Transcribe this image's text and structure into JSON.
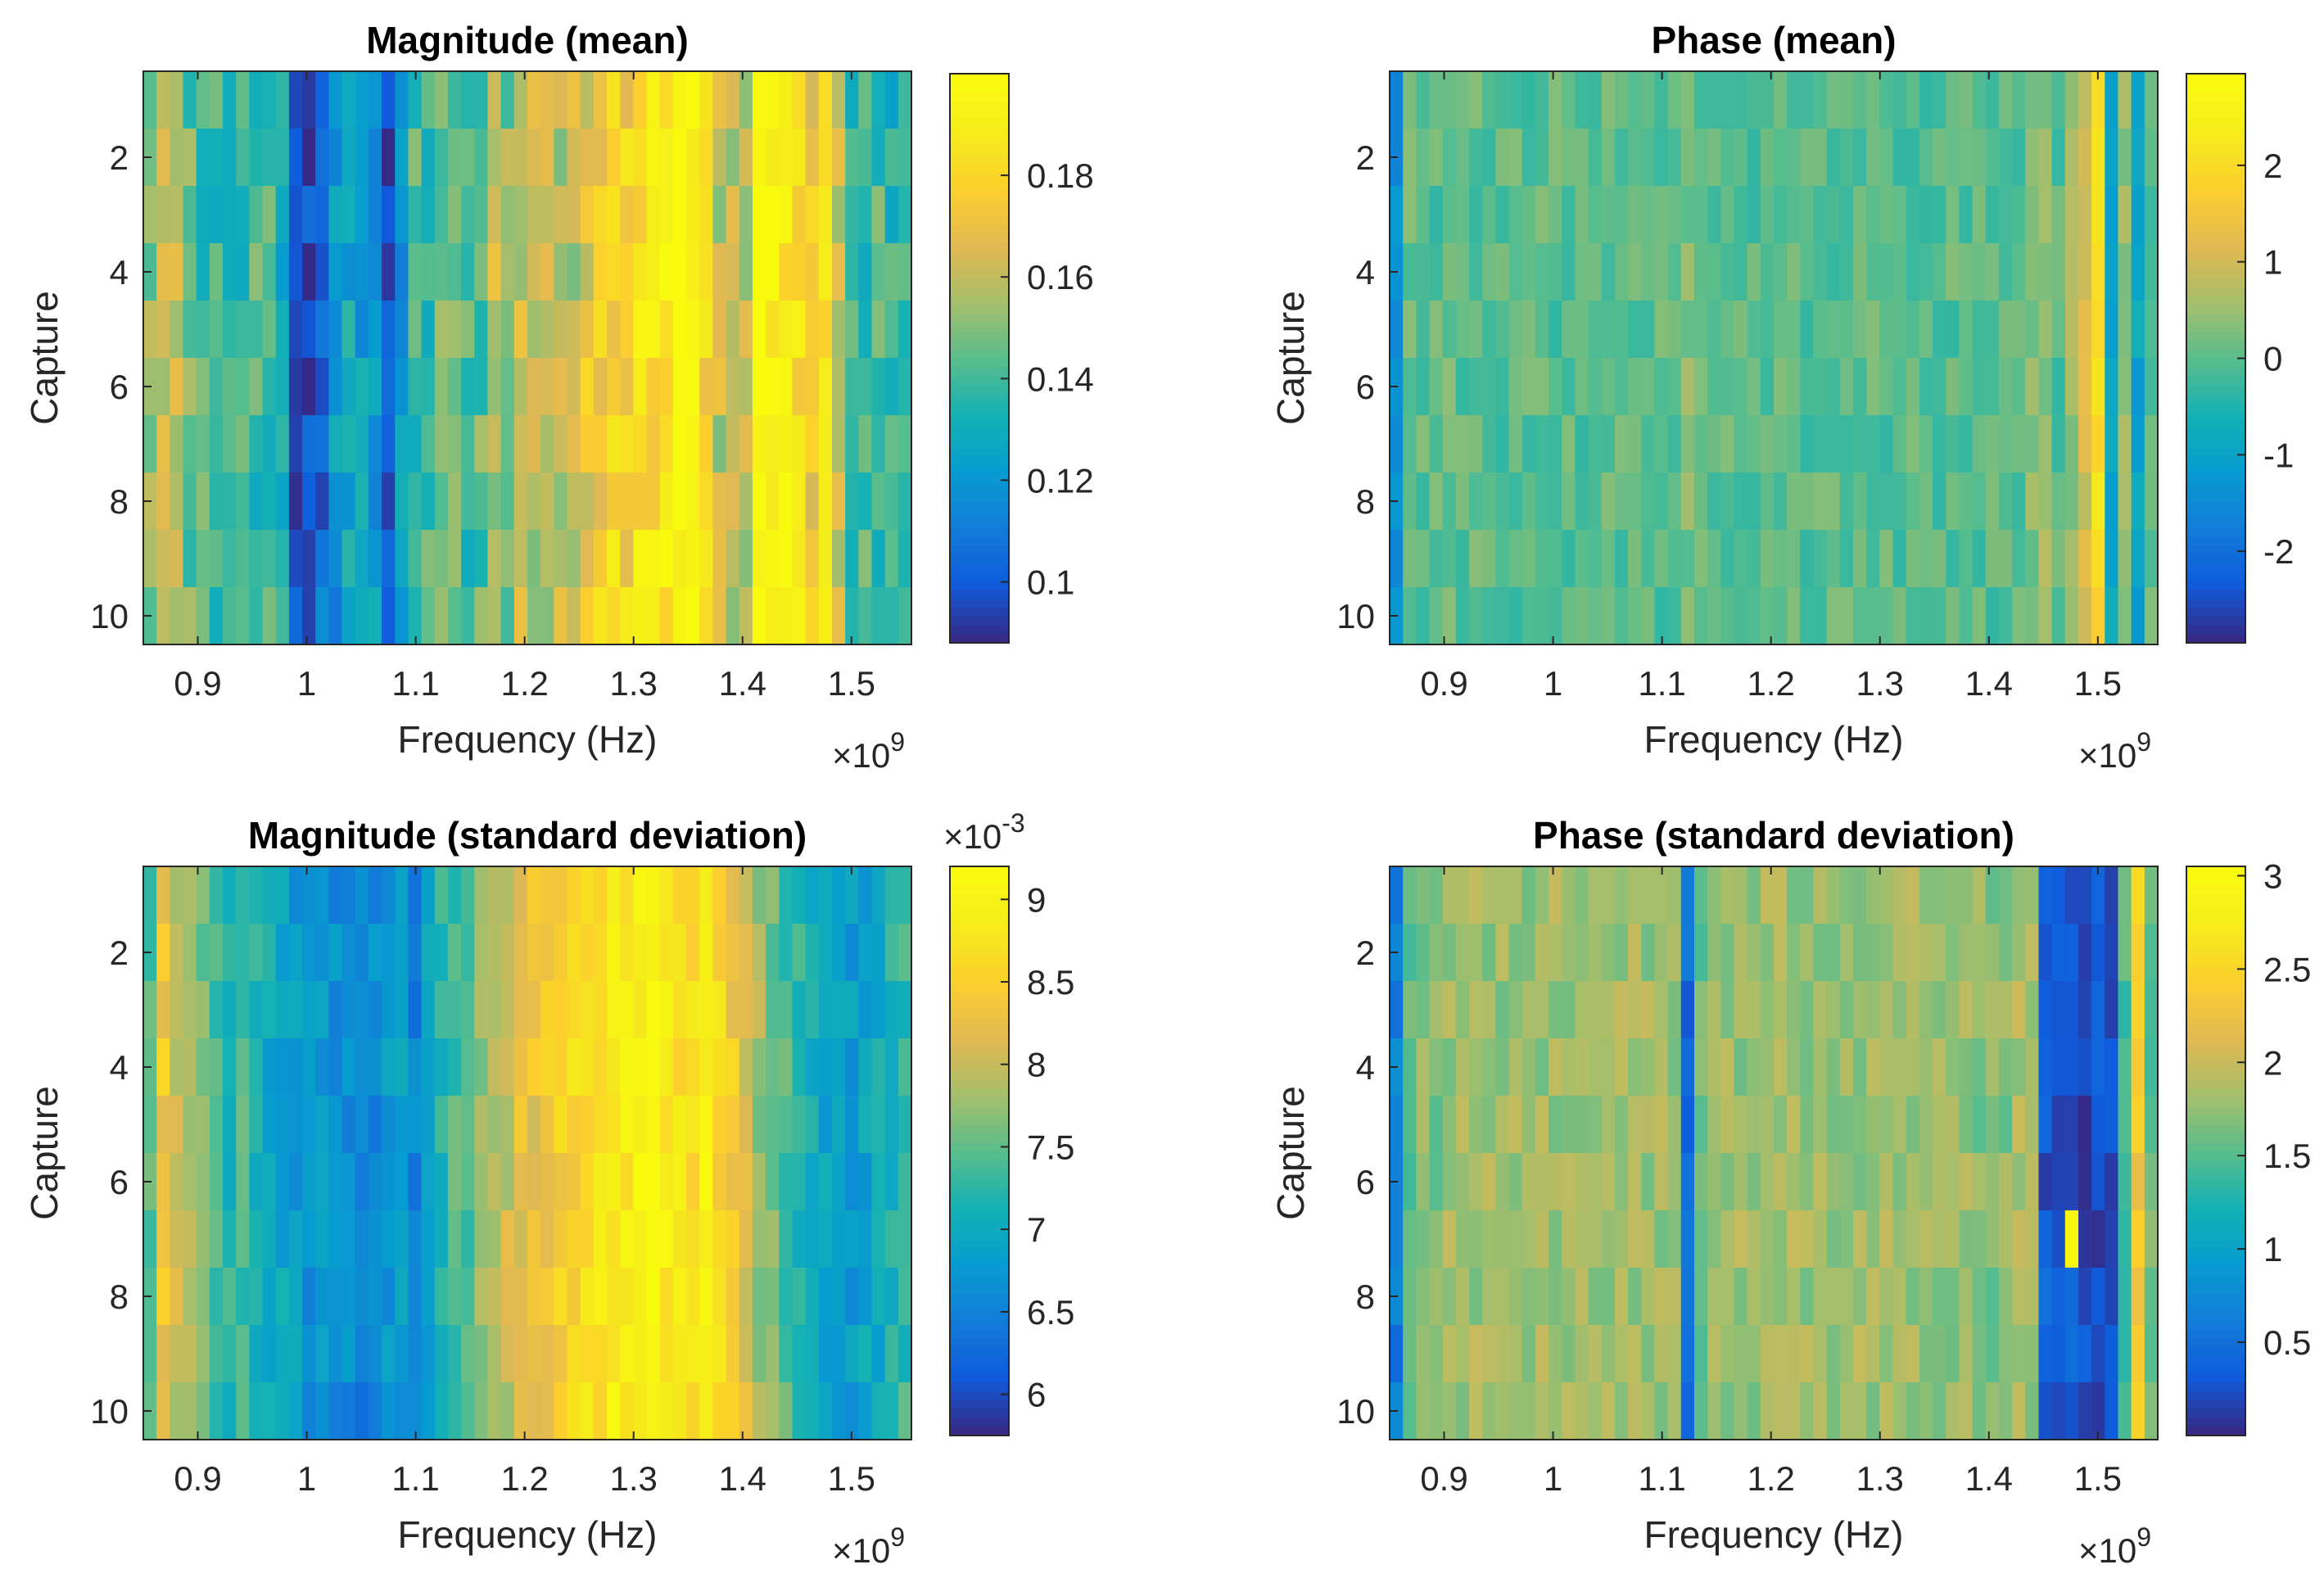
{
  "figure": {
    "xlabel": "Frequency (Hz)",
    "ylabel": "Capture",
    "xexp_base": "×10",
    "xexp_pow": "9"
  },
  "chart_data": [
    {
      "type": "heatmap",
      "title": "Magnitude (mean)",
      "xlabel": "Frequency (Hz)",
      "ylabel": "Capture",
      "x_range": [
        850000000.0,
        1555000000.0
      ],
      "x_ticks": [
        "0.9",
        "1",
        "1.1",
        "1.2",
        "1.3",
        "1.4",
        "1.5"
      ],
      "y_ticks": [
        "2",
        "4",
        "6",
        "8",
        "10"
      ],
      "captures": 10,
      "colorbar": {
        "ticks": [
          "0.1",
          "0.12",
          "0.14",
          "0.16",
          "0.18"
        ],
        "min": 0.088,
        "max": 0.2,
        "exponent_label": ""
      },
      "column_profile": [
        0.15,
        0.165,
        0.16,
        0.145,
        0.14,
        0.14,
        0.14,
        0.14,
        0.14,
        0.14,
        0.13,
        0.1,
        0.095,
        0.105,
        0.12,
        0.125,
        0.125,
        0.12,
        0.095,
        0.12,
        0.14,
        0.14,
        0.145,
        0.15,
        0.14,
        0.145,
        0.16,
        0.15,
        0.16,
        0.16,
        0.16,
        0.16,
        0.16,
        0.17,
        0.175,
        0.18,
        0.178,
        0.185,
        0.185,
        0.19,
        0.2,
        0.195,
        0.18,
        0.16,
        0.16,
        0.16,
        0.2,
        0.195,
        0.19,
        0.185,
        0.17,
        0.18,
        0.16,
        0.14,
        0.14,
        0.14,
        0.135,
        0.135
      ],
      "noise": 0.012,
      "seed": 11
    },
    {
      "type": "heatmap",
      "title": "Phase (mean)",
      "xlabel": "Frequency (Hz)",
      "ylabel": "Capture",
      "x_range": [
        850000000.0,
        1555000000.0
      ],
      "x_ticks": [
        "0.9",
        "1",
        "1.1",
        "1.2",
        "1.3",
        "1.4",
        "1.5"
      ],
      "y_ticks": [
        "2",
        "4",
        "6",
        "8",
        "10"
      ],
      "captures": 10,
      "colorbar": {
        "ticks": [
          "-2",
          "-1",
          "0",
          "1",
          "2"
        ],
        "min": -2.95,
        "max": 2.95,
        "exponent_label": ""
      },
      "column_profile": [
        -1.5,
        0.1,
        0,
        0,
        0.2,
        0,
        0,
        0,
        0,
        0,
        0,
        0,
        0,
        0,
        0,
        0,
        0.1,
        0,
        0,
        0,
        0,
        0,
        0.3,
        0,
        0,
        0,
        0,
        0,
        0,
        0,
        0,
        0,
        0,
        0,
        0,
        0,
        0,
        0,
        0,
        0,
        0,
        0,
        0,
        0,
        0,
        0,
        0,
        0,
        0.3,
        0.5,
        0,
        0.5,
        1,
        2,
        -1,
        0.5,
        -1,
        0
      ],
      "noise": 0.35,
      "seed": 27
    },
    {
      "type": "heatmap",
      "title": "Magnitude (standard deviation)",
      "xlabel": "Frequency (Hz)",
      "ylabel": "Capture",
      "x_range": [
        850000000.0,
        1555000000.0
      ],
      "x_ticks": [
        "0.9",
        "1",
        "1.1",
        "1.2",
        "1.3",
        "1.4",
        "1.5"
      ],
      "y_ticks": [
        "2",
        "4",
        "6",
        "8",
        "10"
      ],
      "captures": 10,
      "colorbar": {
        "ticks": [
          "6",
          "6.5",
          "7",
          "7.5",
          "8",
          "8.5",
          "9"
        ],
        "min": 5.75,
        "max": 9.2,
        "exponent_label": "×10",
        "exponent_pow": "-3"
      },
      "column_profile": [
        7.4,
        8.4,
        8.0,
        7.8,
        7.6,
        7.4,
        7.2,
        7.4,
        7.2,
        7.0,
        6.9,
        6.8,
        6.7,
        6.8,
        6.6,
        6.6,
        6.5,
        6.6,
        6.7,
        6.8,
        6.5,
        6.9,
        7.2,
        7.4,
        7.5,
        7.7,
        7.8,
        8.0,
        8.2,
        8.3,
        8.4,
        8.5,
        8.6,
        8.7,
        8.8,
        8.9,
        8.9,
        9.0,
        9.0,
        8.9,
        8.8,
        8.7,
        9.0,
        8.6,
        8.4,
        8.2,
        7.8,
        7.6,
        7.4,
        7.2,
        7.0,
        6.9,
        6.8,
        6.8,
        6.9,
        7.0,
        7.2,
        7.3
      ],
      "noise": 0.25,
      "seed": 53
    },
    {
      "type": "heatmap",
      "title": "Phase (standard deviation)",
      "xlabel": "Frequency (Hz)",
      "ylabel": "Capture",
      "x_range": [
        850000000.0,
        1555000000.0
      ],
      "x_ticks": [
        "0.9",
        "1",
        "1.1",
        "1.2",
        "1.3",
        "1.4",
        "1.5"
      ],
      "y_ticks": [
        "2",
        "4",
        "6",
        "8",
        "10"
      ],
      "captures": 10,
      "colorbar": {
        "ticks": [
          "0.5",
          "1",
          "1.5",
          "2",
          "2.5",
          "3"
        ],
        "min": 0.0,
        "max": 3.05,
        "exponent_label": ""
      },
      "column_profile": [
        0.6,
        1.5,
        1.7,
        1.7,
        1.8,
        1.8,
        1.8,
        1.8,
        1.8,
        1.8,
        1.8,
        1.8,
        1.8,
        1.8,
        1.8,
        1.8,
        1.8,
        1.8,
        1.8,
        1.8,
        1.8,
        1.8,
        0.4,
        1.6,
        1.8,
        1.8,
        1.8,
        1.8,
        1.8,
        1.8,
        1.8,
        1.8,
        1.8,
        1.8,
        1.8,
        1.8,
        1.8,
        1.8,
        1.8,
        1.8,
        1.8,
        1.8,
        1.8,
        1.8,
        1.7,
        1.7,
        1.7,
        1.9,
        1.8,
        0.3,
        0.2,
        0.3,
        0.2,
        0.2,
        0.2,
        1.5,
        2.4,
        1.6
      ],
      "noise": 0.2,
      "seed": 71
    }
  ]
}
